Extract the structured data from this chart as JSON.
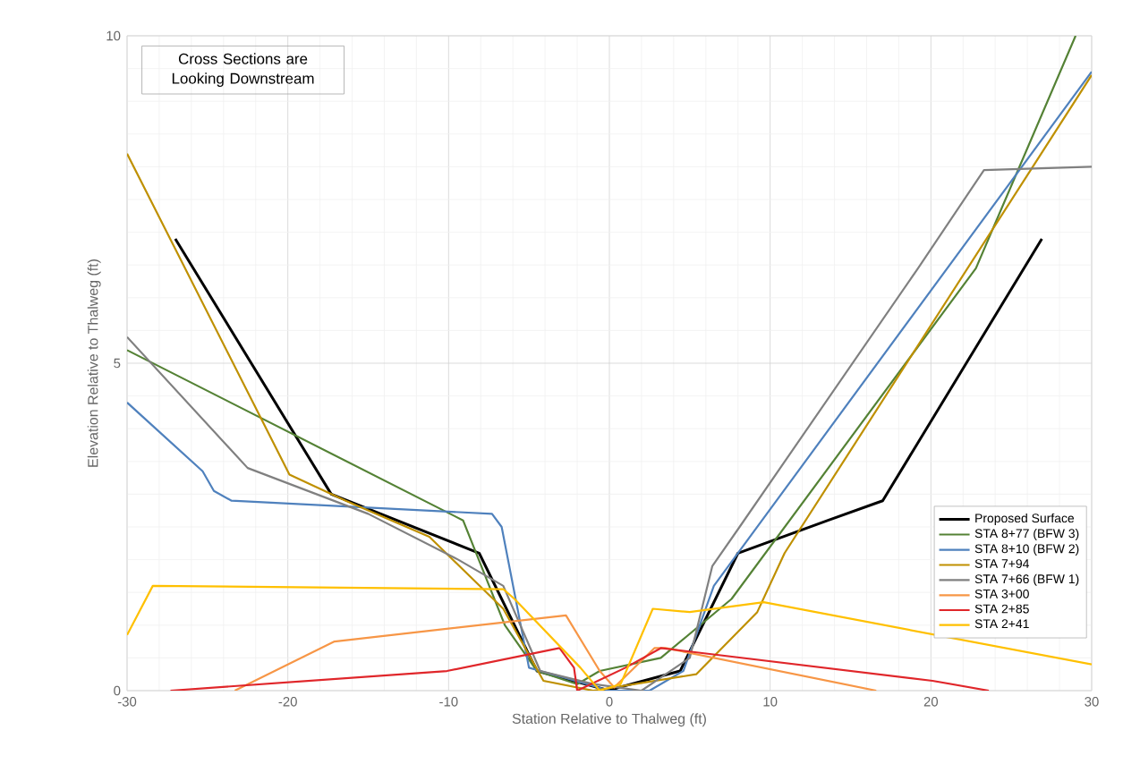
{
  "chart_data": {
    "type": "line",
    "xlabel": "Station Relative to Thalweg (ft)",
    "ylabel": "Elevation Relative to Thalweg (ft)",
    "annotations": [
      "Cross Sections are Looking Downstream"
    ],
    "xlim": [
      -30,
      30
    ],
    "ylim": [
      0,
      10
    ],
    "xticks": [
      -30,
      -20,
      -10,
      0,
      10,
      20,
      30
    ],
    "yticks": [
      0,
      5,
      10
    ],
    "grid": true,
    "legend": "right",
    "line_style": "solid",
    "series": [
      {
        "name": "Proposed Surface",
        "color": "#000000",
        "x": [
          -27,
          -17.3,
          -8.1,
          -4.5,
          0,
          0.6,
          4.4,
          8,
          13.6,
          17,
          26.9
        ],
        "values": [
          6.9,
          3.0,
          2.1,
          0.3,
          0,
          0.05,
          0.3,
          2.1,
          2.6,
          2.9,
          6.9
        ]
      },
      {
        "name": "STA 8+77 (BFW 3)",
        "color": "#548235",
        "x": [
          -30,
          -9.1,
          -6.5,
          -4.5,
          -2,
          -0.6,
          3.2,
          7.6,
          22.8,
          29
        ],
        "values": [
          5.2,
          2.6,
          1.0,
          0.3,
          0.1,
          0.3,
          0.5,
          1.4,
          6.45,
          10
        ]
      },
      {
        "name": "STA 8+10 (BFW 2)",
        "color": "#4f81bd",
        "x": [
          -30,
          -25.3,
          -24.6,
          -23.5,
          -7.3,
          -6.7,
          -5.0,
          -4.3,
          -2.8,
          0,
          2.5,
          4.6,
          6.5,
          30
        ],
        "values": [
          4.4,
          3.35,
          3.05,
          2.9,
          2.7,
          2.5,
          0.35,
          0.3,
          0.2,
          0,
          0,
          0.3,
          1.6,
          9.45
        ]
      },
      {
        "name": "STA 7+94",
        "color": "#bf9000",
        "x": [
          -30,
          -19.9,
          -16.4,
          -11.2,
          -6.6,
          -4.1,
          -1,
          5.4,
          9.2,
          10.9,
          30
        ],
        "values": [
          8.2,
          3.3,
          2.9,
          2.35,
          1.25,
          0.15,
          0,
          0.25,
          1.2,
          2.1,
          9.4
        ]
      },
      {
        "name": "STA 7+66 (BFW 1)",
        "color": "#808080",
        "x": [
          -30,
          -22.5,
          -15,
          -9.4,
          -6.6,
          -4.3,
          -1,
          2,
          5,
          6.4,
          8.1,
          19.2,
          23.3,
          30
        ],
        "values": [
          5.4,
          3.4,
          2.7,
          2.0,
          1.6,
          0.3,
          0.1,
          0,
          0.5,
          1.9,
          2.5,
          6.45,
          7.95,
          8.0
        ]
      },
      {
        "name": "STA 3+00",
        "color": "#f79646",
        "x": [
          -23.3,
          -17.1,
          -2.7,
          -0.6,
          0.3,
          2.8,
          3.5,
          16.6
        ],
        "values": [
          0,
          0.75,
          1.15,
          0.3,
          0.05,
          0.65,
          0.65,
          0
        ]
      },
      {
        "name": "STA 2+85",
        "color": "#e0262a",
        "x": [
          -27.3,
          -10.1,
          -3.1,
          -2.2,
          -2,
          1,
          3.2,
          20.1,
          23.6
        ],
        "values": [
          0,
          0.3,
          0.65,
          0.35,
          0,
          0.35,
          0.65,
          0.15,
          0
        ]
      },
      {
        "name": "STA 2+41",
        "color": "#ffc000",
        "x": [
          -30,
          -28.4,
          -6.6,
          -5.9,
          -1.8,
          -0.6,
          0.7,
          2.7,
          5,
          9.6,
          30
        ],
        "values": [
          0.85,
          1.6,
          1.55,
          1.4,
          0.35,
          0,
          0.1,
          1.25,
          1.2,
          1.35,
          0.4
        ]
      }
    ]
  }
}
